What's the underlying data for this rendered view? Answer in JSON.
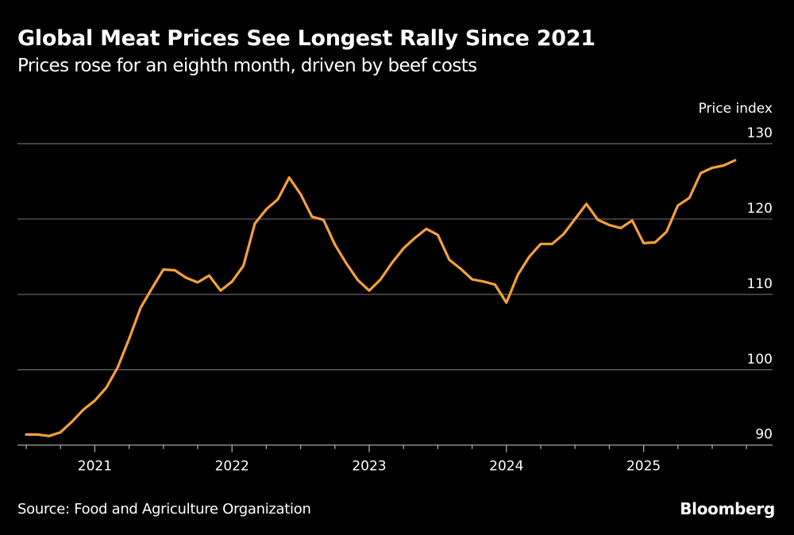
{
  "chart_data": {
    "type": "line",
    "title": "Global Meat Prices See Longest Rally Since 2021",
    "subtitle": "Prices rose for an eighth month, driven by beef costs",
    "ylabel": "Price index",
    "xlabel": "",
    "ylim": [
      90,
      130
    ],
    "yticks": [
      "90",
      "100",
      "110",
      "120",
      "130"
    ],
    "xticks": [
      "2021",
      "2022",
      "2023",
      "2024",
      "2025"
    ],
    "x_start": "2020-07",
    "x_frequency": "monthly",
    "x_end": "2025-09",
    "grid": true,
    "line_color": "#f5a03c",
    "series": [
      {
        "values": [
          91.4,
          91.4,
          91.2,
          91.7,
          93.1,
          94.7,
          95.9,
          97.6,
          100.3,
          104.1,
          108.2,
          110.8,
          113.3,
          113.2,
          112.2,
          111.6,
          112.5,
          110.5,
          111.7,
          113.8,
          119.4,
          121.3,
          122.6,
          125.5,
          123.3,
          120.3,
          119.9,
          116.6,
          114.1,
          111.9,
          110.5,
          112.0,
          114.2,
          116.1,
          117.5,
          118.7,
          117.9,
          114.6,
          113.4,
          112.0,
          111.7,
          111.3,
          108.9,
          112.6,
          115.0,
          116.7,
          116.7,
          118.0,
          120.0,
          122.0,
          119.9,
          119.2,
          118.8,
          119.8,
          116.8,
          116.9,
          118.3,
          121.8,
          122.8,
          126.1,
          126.8,
          127.1,
          127.8
        ]
      }
    ]
  },
  "footer": {
    "source": "Source: Food and Agriculture Organization",
    "logo": "Bloomberg"
  }
}
